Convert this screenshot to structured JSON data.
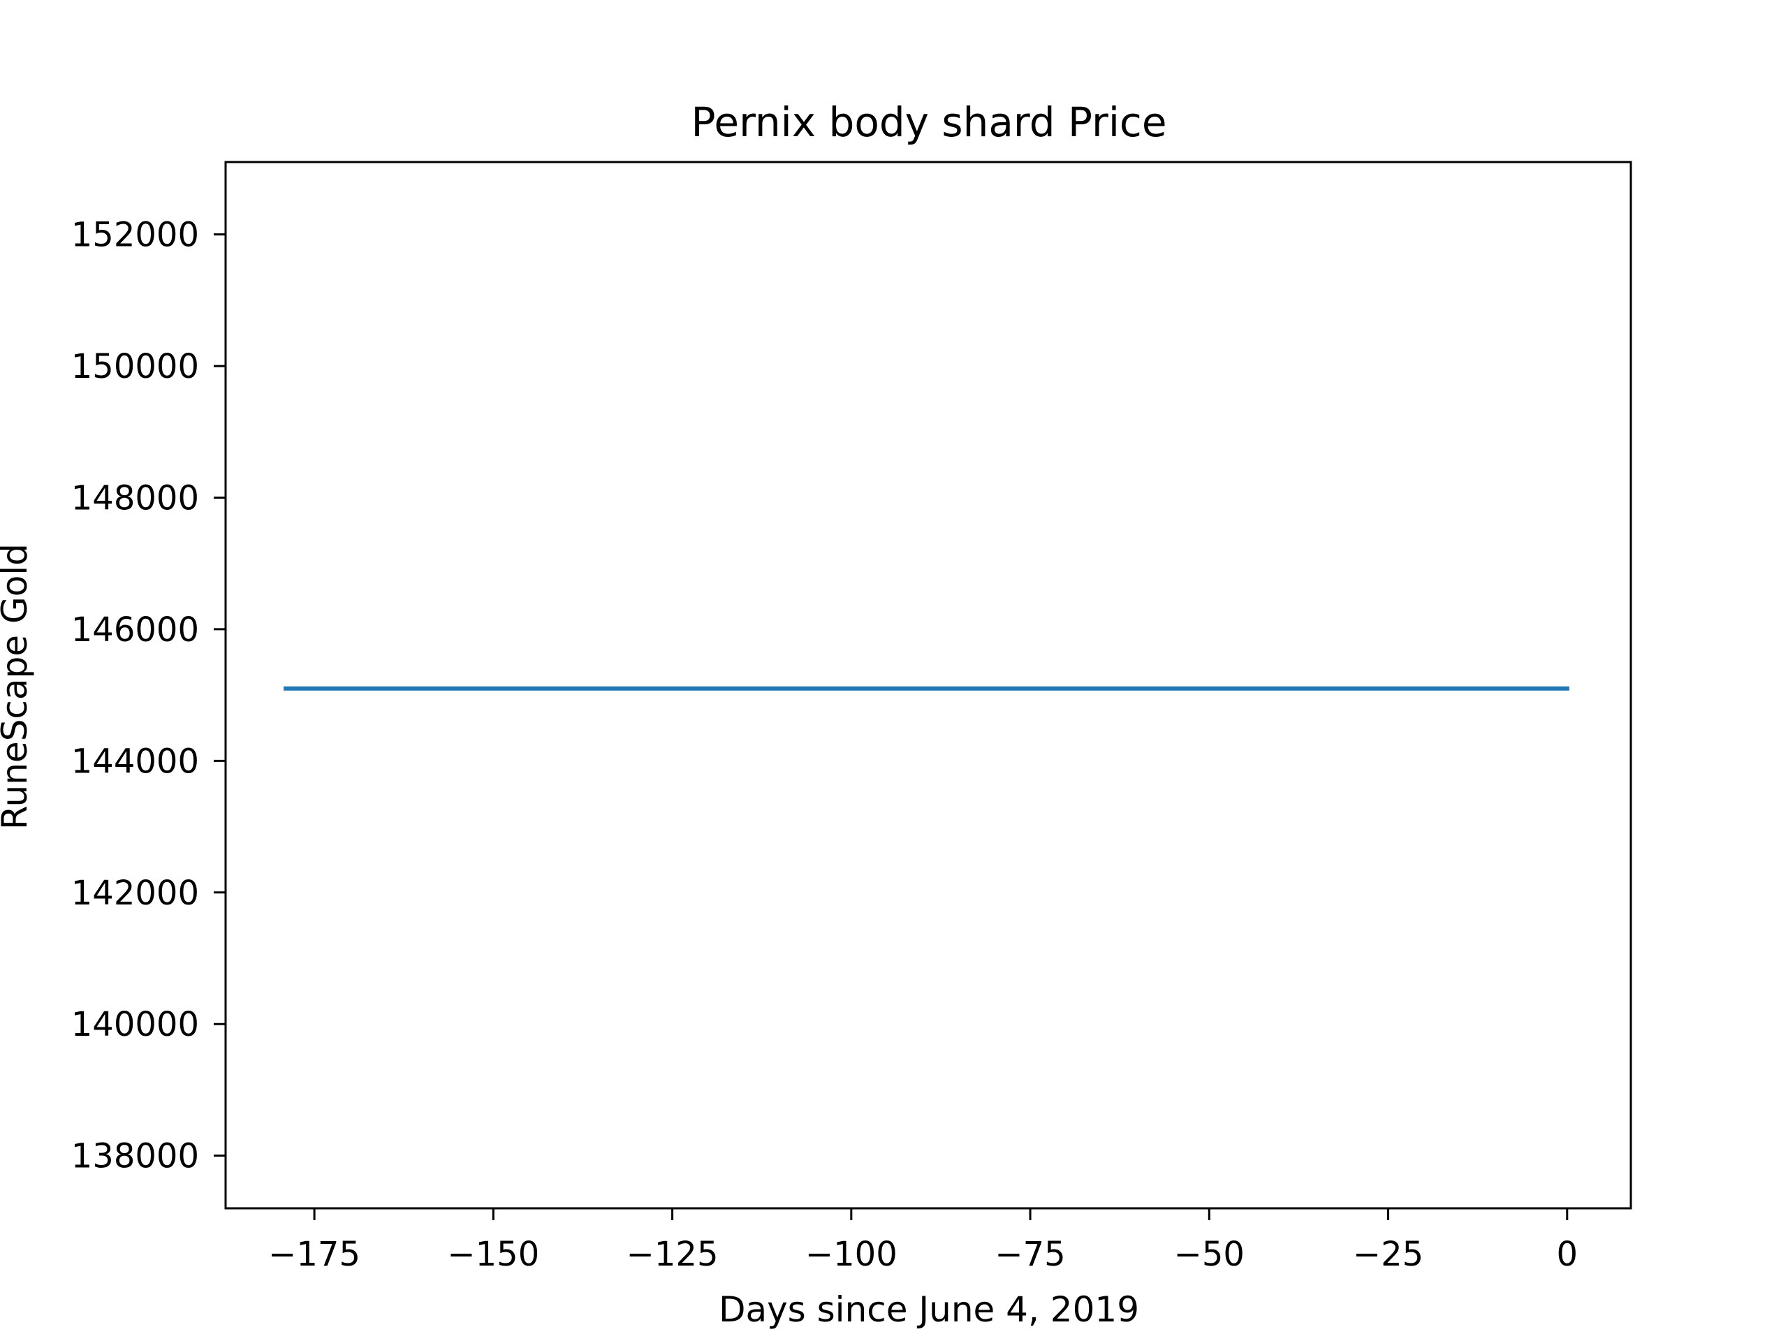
{
  "chart_data": {
    "type": "line",
    "title": "Pernix body shard Price",
    "xlabel": "Days since June 4, 2019",
    "ylabel": "RuneScape Gold",
    "xlim": [
      -187.4,
      8.9
    ],
    "ylim": [
      137200,
      153100
    ],
    "x_ticks": [
      -175,
      -150,
      -125,
      -100,
      -75,
      -50,
      -25,
      0
    ],
    "x_tick_labels": [
      "−175",
      "−150",
      "−125",
      "−100",
      "−75",
      "−50",
      "−25",
      "0"
    ],
    "y_ticks": [
      138000,
      140000,
      142000,
      144000,
      146000,
      148000,
      150000,
      152000
    ],
    "y_tick_labels": [
      "138000",
      "140000",
      "142000",
      "144000",
      "146000",
      "148000",
      "150000",
      "152000"
    ],
    "grid": false,
    "series": [
      {
        "color": "#1f77b4",
        "x": [
          -179,
          0
        ],
        "y": [
          145100,
          145100
        ]
      }
    ]
  }
}
